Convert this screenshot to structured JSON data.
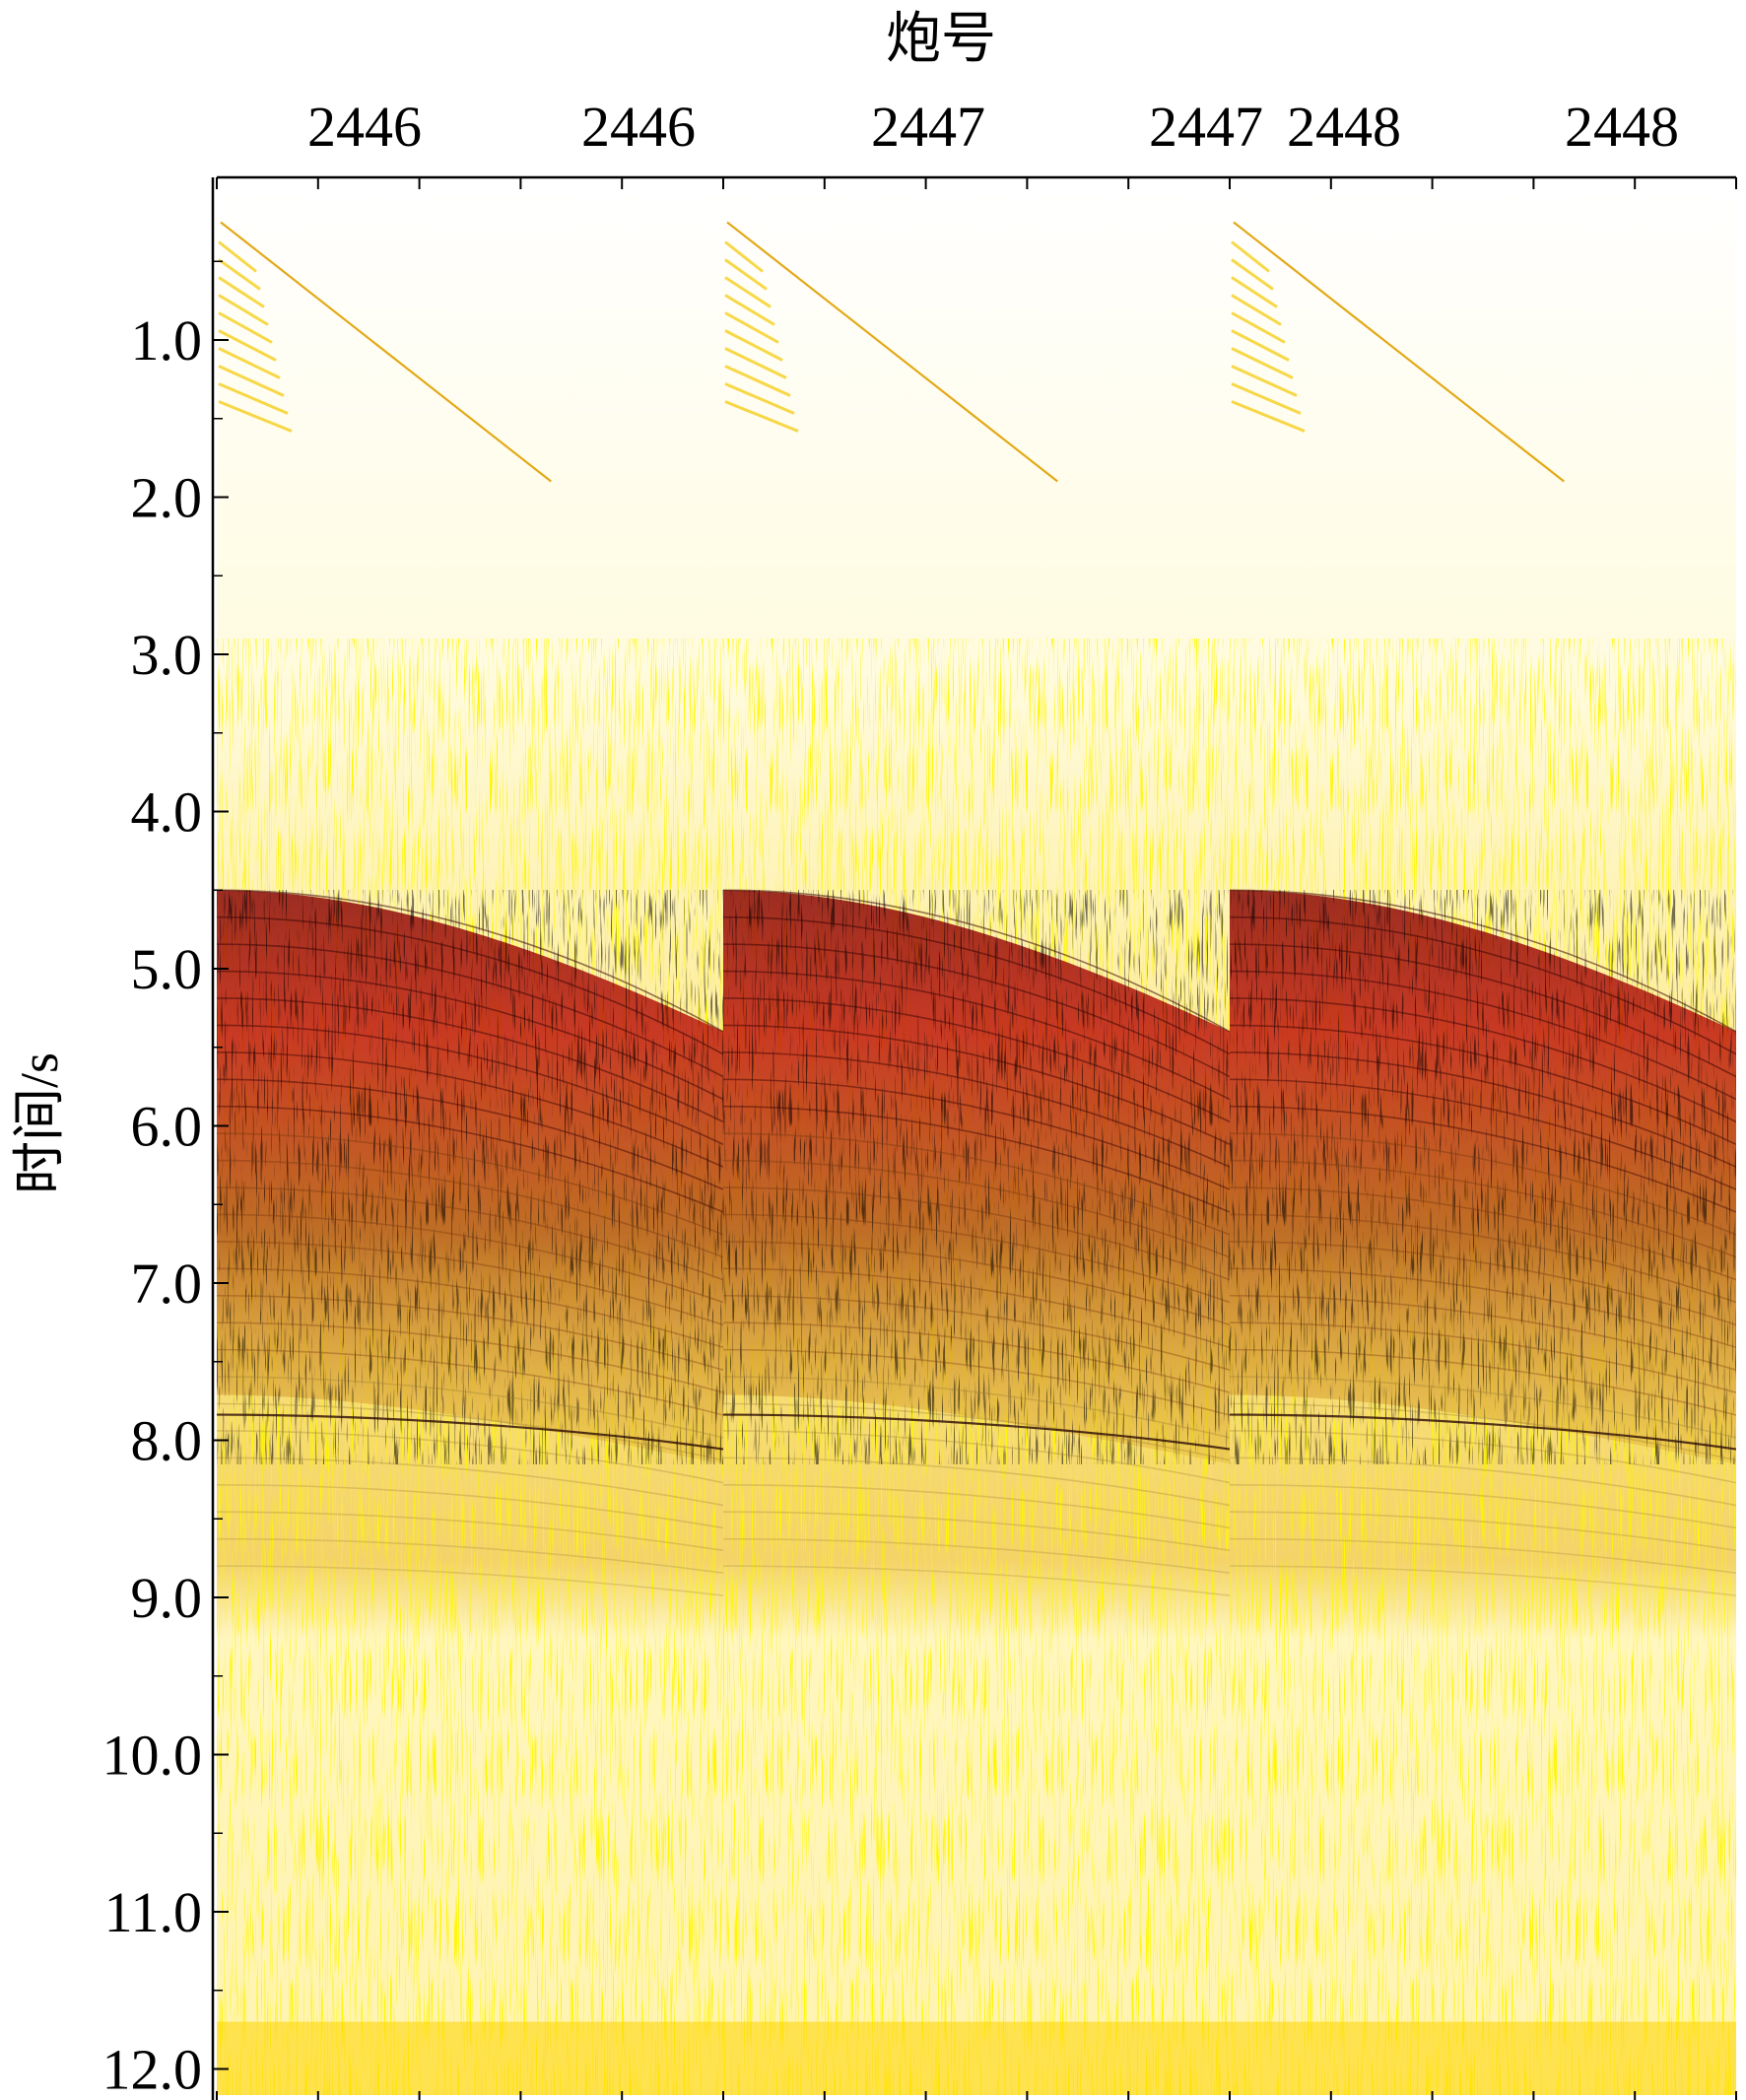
{
  "chart_data": {
    "type": "heatmap",
    "title": "",
    "xlabel": "炮号",
    "ylabel": "时间/s",
    "x_tick_labels": [
      "2446",
      "2446",
      "2447",
      "2447",
      "2448",
      "2448"
    ],
    "y_tick_labels": [
      "1.0",
      "2.0",
      "3.0",
      "4.0",
      "5.0",
      "6.0",
      "7.0",
      "8.0",
      "9.0",
      "10.0",
      "11.0",
      "12.0"
    ],
    "y_ticks": [
      1,
      2,
      3,
      4,
      5,
      6,
      7,
      8,
      9,
      10,
      11,
      12
    ],
    "ylim": [
      0,
      12
    ],
    "y_inverted": true,
    "grid": false,
    "panels": [
      {
        "shot": "2446"
      },
      {
        "shot": "2447"
      },
      {
        "shot": "2448"
      }
    ],
    "events_s": {
      "direct_wave_start": 0.0,
      "direct_wave_end": 1.9,
      "noise_band_start": 2.9,
      "strong_reflection_near": 4.5,
      "strong_reflection_far": 5.4,
      "deep_event": 7.9,
      "energy_fade": 8.8
    },
    "colormap": [
      "#ffffff",
      "#ffe600",
      "#f0b400",
      "#e06010",
      "#c01010",
      "#000000"
    ]
  }
}
